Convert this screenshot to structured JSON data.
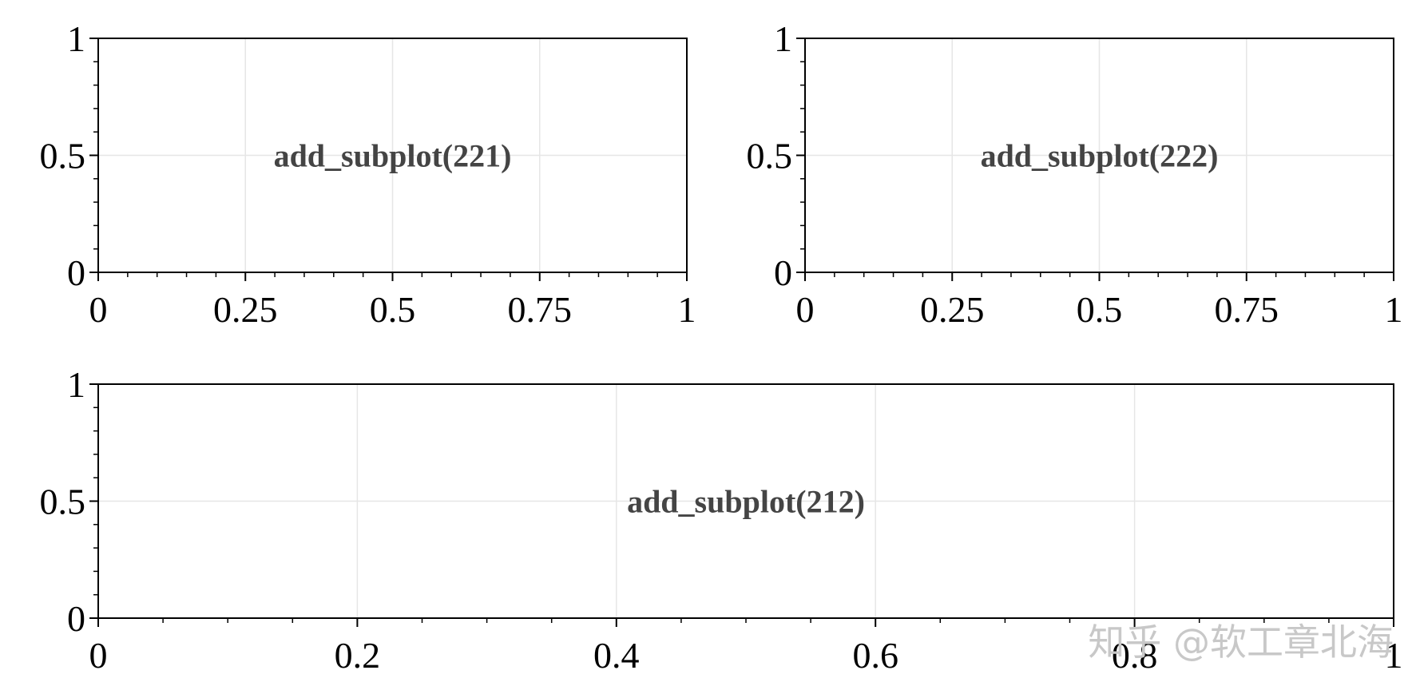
{
  "chart_data": [
    {
      "type": "scatter",
      "id": "subplot-221",
      "annotation": "add_subplot(221)",
      "xlim": [
        0,
        1
      ],
      "ylim": [
        0,
        1
      ],
      "x_ticks": [
        0,
        0.25,
        0.5,
        0.75,
        1
      ],
      "x_tick_labels": [
        "0",
        "0.25",
        "0.5",
        "0.75",
        "1"
      ],
      "y_ticks": [
        0,
        0.5,
        1
      ],
      "y_tick_labels": [
        "0",
        "0.5",
        "1"
      ],
      "x_minor_step": 0.05,
      "y_minor_step": 0.1,
      "grid": true,
      "series": []
    },
    {
      "type": "scatter",
      "id": "subplot-222",
      "annotation": "add_subplot(222)",
      "xlim": [
        0,
        1
      ],
      "ylim": [
        0,
        1
      ],
      "x_ticks": [
        0,
        0.25,
        0.5,
        0.75,
        1
      ],
      "x_tick_labels": [
        "0",
        "0.25",
        "0.5",
        "0.75",
        "1"
      ],
      "y_ticks": [
        0,
        0.5,
        1
      ],
      "y_tick_labels": [
        "0",
        "0.5",
        "1"
      ],
      "x_minor_step": 0.05,
      "y_minor_step": 0.1,
      "grid": true,
      "series": []
    },
    {
      "type": "scatter",
      "id": "subplot-212",
      "annotation": "add_subplot(212)",
      "xlim": [
        0,
        1
      ],
      "ylim": [
        0,
        1
      ],
      "x_ticks": [
        0,
        0.2,
        0.4,
        0.6,
        0.8,
        1
      ],
      "x_tick_labels": [
        "0",
        "0.2",
        "0.4",
        "0.6",
        "0.8",
        "1"
      ],
      "y_ticks": [
        0,
        0.5,
        1
      ],
      "y_tick_labels": [
        "0",
        "0.5",
        "1"
      ],
      "x_minor_step": 0.05,
      "y_minor_step": 0.1,
      "grid": true,
      "series": []
    }
  ],
  "watermark": "知乎 @软工章北海",
  "colors": {
    "grid": "#e6e6e6",
    "axes": "#000000",
    "annotation": "#444444",
    "watermark": "#c8c8c8"
  }
}
